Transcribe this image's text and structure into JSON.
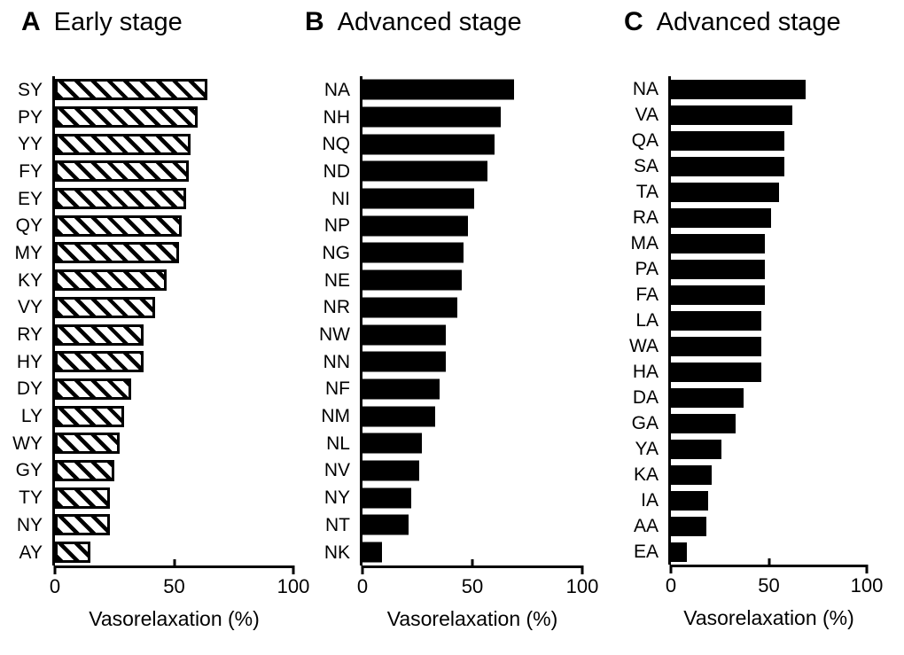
{
  "colors": {
    "bar": "#000000",
    "background": "#ffffff",
    "text": "#000000"
  },
  "chart_data": [
    {
      "type": "bar",
      "panel": "A",
      "title": "Early stage",
      "orientation": "horizontal",
      "bar_style": "hatched",
      "xlabel": "Vasorelaxation (%)",
      "xlim": [
        0,
        100
      ],
      "xticks": [
        0,
        50,
        100
      ],
      "xtick_labels": [
        "0",
        "50",
        "100"
      ],
      "legend": null,
      "grid": false,
      "categories": [
        "SY",
        "PY",
        "YY",
        "FY",
        "EY",
        "QY",
        "MY",
        "KY",
        "VY",
        "RY",
        "HY",
        "DY",
        "LY",
        "WY",
        "GY",
        "TY",
        "NY",
        "AY"
      ],
      "values": [
        64,
        60,
        57,
        56,
        55,
        53,
        52,
        47,
        42,
        37,
        37,
        32,
        29,
        27,
        25,
        23,
        23,
        15
      ]
    },
    {
      "type": "bar",
      "panel": "B",
      "title": "Advanced stage",
      "orientation": "horizontal",
      "bar_style": "solid",
      "xlabel": "Vasorelaxation (%)",
      "xlim": [
        0,
        100
      ],
      "xticks": [
        0,
        50,
        100
      ],
      "xtick_labels": [
        "0",
        "50",
        "100"
      ],
      "legend": null,
      "grid": false,
      "categories": [
        "NA",
        "NH",
        "NQ",
        "ND",
        "NI",
        "NP",
        "NG",
        "NE",
        "NR",
        "NW",
        "NN",
        "NF",
        "NM",
        "NL",
        "NV",
        "NY",
        "NT",
        "NK"
      ],
      "values": [
        69,
        63,
        60,
        57,
        51,
        48,
        46,
        45,
        43,
        38,
        38,
        35,
        33,
        27,
        26,
        22,
        21,
        9
      ]
    },
    {
      "type": "bar",
      "panel": "C",
      "title": "Advanced stage",
      "orientation": "horizontal",
      "bar_style": "solid",
      "xlabel": "Vasorelaxation (%)",
      "xlim": [
        0,
        100
      ],
      "xticks": [
        0,
        50,
        100
      ],
      "xtick_labels": [
        "0",
        "50",
        "100"
      ],
      "legend": null,
      "grid": false,
      "categories": [
        "NA",
        "VA",
        "QA",
        "SA",
        "TA",
        "RA",
        "MA",
        "PA",
        "FA",
        "LA",
        "WA",
        "HA",
        "DA",
        "GA",
        "YA",
        "KA",
        "IA",
        "AA",
        "EA"
      ],
      "values": [
        69,
        62,
        58,
        58,
        55,
        51,
        48,
        48,
        48,
        46,
        46,
        46,
        37,
        33,
        26,
        21,
        19,
        18,
        8
      ]
    }
  ]
}
